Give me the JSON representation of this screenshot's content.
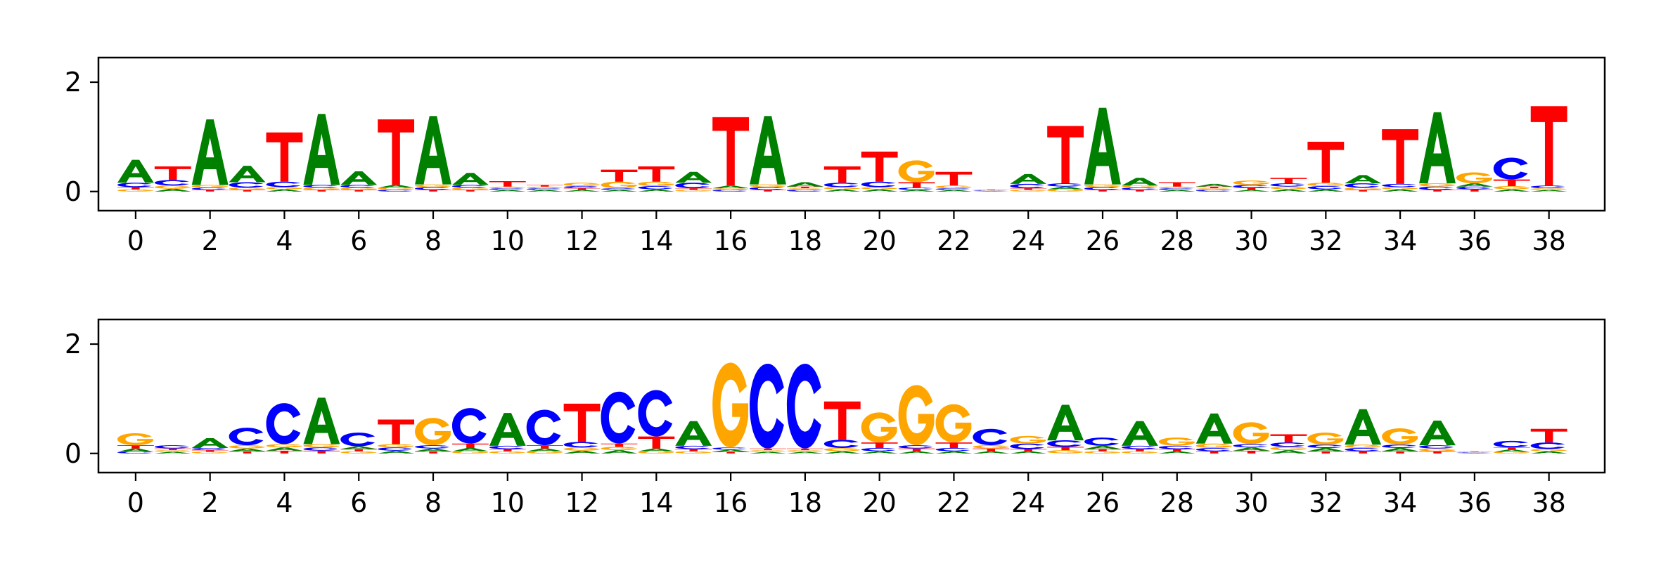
{
  "colors": {
    "A": "#008000",
    "C": "#0000ff",
    "G": "#ffa500",
    "T": "#ff0000"
  },
  "chart_data": [
    {
      "type": "sequence-logo",
      "xlabel": "",
      "ylabel": "",
      "x_ticks": [
        "0",
        "2",
        "4",
        "6",
        "8",
        "10",
        "12",
        "14",
        "16",
        "18",
        "20",
        "22",
        "24",
        "26",
        "28",
        "30",
        "32",
        "34",
        "36",
        "38"
      ],
      "y_ticks": [
        "0",
        "2"
      ],
      "xlim": [
        -0.5,
        40.0
      ],
      "ylim": [
        -0.35,
        2.45
      ],
      "positions": [
        {
          "A": 0.42,
          "C": 0.08,
          "G": 0.04,
          "T": 0.04
        },
        {
          "A": 0.05,
          "C": 0.1,
          "G": 0.06,
          "T": 0.25
        },
        {
          "A": 1.2,
          "C": 0.04,
          "G": 0.05,
          "T": 0.03
        },
        {
          "A": 0.3,
          "C": 0.1,
          "G": 0.04,
          "T": 0.03
        },
        {
          "A": 0.04,
          "C": 0.1,
          "G": 0.04,
          "T": 0.9
        },
        {
          "A": 1.3,
          "C": 0.05,
          "G": 0.04,
          "T": 0.03
        },
        {
          "A": 0.25,
          "C": 0.05,
          "G": 0.04,
          "T": 0.03
        },
        {
          "A": 0.05,
          "C": 0.03,
          "G": 0.04,
          "T": 1.2
        },
        {
          "A": 1.25,
          "C": 0.05,
          "G": 0.05,
          "T": 0.03
        },
        {
          "A": 0.22,
          "C": 0.05,
          "G": 0.04,
          "T": 0.03
        },
        {
          "A": 0.03,
          "C": 0.03,
          "G": 0.03,
          "T": 0.1
        },
        {
          "A": 0.03,
          "C": 0.03,
          "G": 0.03,
          "T": 0.03
        },
        {
          "A": 0.03,
          "C": 0.04,
          "G": 0.06,
          "T": 0.03
        },
        {
          "A": 0.03,
          "C": 0.03,
          "G": 0.12,
          "T": 0.22
        },
        {
          "A": 0.04,
          "C": 0.06,
          "G": 0.08,
          "T": 0.28
        },
        {
          "A": 0.2,
          "C": 0.1,
          "G": 0.03,
          "T": 0.03
        },
        {
          "A": 0.05,
          "C": 0.03,
          "G": 0.03,
          "T": 1.25
        },
        {
          "A": 1.25,
          "C": 0.05,
          "G": 0.05,
          "T": 0.03
        },
        {
          "A": 0.08,
          "C": 0.03,
          "G": 0.03,
          "T": 0.03
        },
        {
          "A": 0.04,
          "C": 0.08,
          "G": 0.04,
          "T": 0.3
        },
        {
          "A": 0.04,
          "C": 0.1,
          "G": 0.04,
          "T": 0.55
        },
        {
          "A": 0.03,
          "C": 0.04,
          "G": 0.4,
          "T": 0.1
        },
        {
          "A": 0.03,
          "C": 0.03,
          "G": 0.05,
          "T": 0.25
        },
        {
          "A": 0.01,
          "C": 0.01,
          "G": 0.01,
          "T": 0.01
        },
        {
          "A": 0.18,
          "C": 0.08,
          "G": 0.03,
          "T": 0.03
        },
        {
          "A": 0.05,
          "C": 0.06,
          "G": 0.04,
          "T": 1.05
        },
        {
          "A": 1.4,
          "C": 0.05,
          "G": 0.05,
          "T": 0.03
        },
        {
          "A": 0.14,
          "C": 0.04,
          "G": 0.04,
          "T": 0.03
        },
        {
          "A": 0.03,
          "C": 0.03,
          "G": 0.03,
          "T": 0.08
        },
        {
          "A": 0.05,
          "C": 0.03,
          "G": 0.03,
          "T": 0.03
        },
        {
          "A": 0.03,
          "C": 0.05,
          "G": 0.08,
          "T": 0.04
        },
        {
          "A": 0.04,
          "C": 0.06,
          "G": 0.05,
          "T": 0.1
        },
        {
          "A": 0.04,
          "C": 0.06,
          "G": 0.06,
          "T": 0.75
        },
        {
          "A": 0.15,
          "C": 0.08,
          "G": 0.04,
          "T": 0.03
        },
        {
          "A": 0.04,
          "C": 0.06,
          "G": 0.04,
          "T": 1.0
        },
        {
          "A": 1.3,
          "C": 0.06,
          "G": 0.06,
          "T": 0.03
        },
        {
          "A": 0.06,
          "C": 0.05,
          "G": 0.2,
          "T": 0.04
        },
        {
          "A": 0.04,
          "C": 0.4,
          "G": 0.06,
          "T": 0.12
        },
        {
          "A": 0.03,
          "C": 0.05,
          "G": 0.03,
          "T": 1.45
        }
      ]
    },
    {
      "type": "sequence-logo",
      "xlabel": "",
      "ylabel": "",
      "x_ticks": [
        "0",
        "2",
        "4",
        "6",
        "8",
        "10",
        "12",
        "14",
        "16",
        "18",
        "20",
        "22",
        "24",
        "26",
        "28",
        "30",
        "32",
        "34",
        "36",
        "38"
      ],
      "y_ticks": [
        "0",
        "2"
      ],
      "xlim": [
        -0.5,
        40.0
      ],
      "ylim": [
        -0.35,
        2.45
      ],
      "positions": [
        {
          "A": 0.06,
          "C": 0.03,
          "G": 0.22,
          "T": 0.06
        },
        {
          "A": 0.03,
          "C": 0.06,
          "G": 0.03,
          "T": 0.03
        },
        {
          "A": 0.18,
          "C": 0.04,
          "G": 0.03,
          "T": 0.03
        },
        {
          "A": 0.05,
          "C": 0.32,
          "G": 0.06,
          "T": 0.04
        },
        {
          "A": 0.06,
          "C": 0.75,
          "G": 0.06,
          "T": 0.05
        },
        {
          "A": 0.85,
          "C": 0.06,
          "G": 0.06,
          "T": 0.05
        },
        {
          "A": 0.05,
          "C": 0.25,
          "G": 0.04,
          "T": 0.04
        },
        {
          "A": 0.05,
          "C": 0.06,
          "G": 0.06,
          "T": 0.45
        },
        {
          "A": 0.05,
          "C": 0.06,
          "G": 0.5,
          "T": 0.04
        },
        {
          "A": 0.06,
          "C": 0.65,
          "G": 0.04,
          "T": 0.08
        },
        {
          "A": 0.6,
          "C": 0.06,
          "G": 0.04,
          "T": 0.04
        },
        {
          "A": 0.05,
          "C": 0.65,
          "G": 0.04,
          "T": 0.06
        },
        {
          "A": 0.05,
          "C": 0.1,
          "G": 0.06,
          "T": 0.7
        },
        {
          "A": 0.06,
          "C": 0.95,
          "G": 0.06,
          "T": 0.06
        },
        {
          "A": 0.05,
          "C": 0.85,
          "G": 0.04,
          "T": 0.22
        },
        {
          "A": 0.45,
          "C": 0.06,
          "G": 0.04,
          "T": 0.04
        },
        {
          "A": 0.04,
          "C": 0.04,
          "G": 1.55,
          "T": 0.03
        },
        {
          "A": 0.03,
          "C": 1.55,
          "G": 0.03,
          "T": 0.03
        },
        {
          "A": 0.03,
          "C": 1.55,
          "G": 0.03,
          "T": 0.03
        },
        {
          "A": 0.04,
          "C": 0.15,
          "G": 0.06,
          "T": 0.7
        },
        {
          "A": 0.04,
          "C": 0.06,
          "G": 0.55,
          "T": 0.1
        },
        {
          "A": 0.04,
          "C": 0.06,
          "G": 1.1,
          "T": 0.05
        },
        {
          "A": 0.04,
          "C": 0.06,
          "G": 0.7,
          "T": 0.1
        },
        {
          "A": 0.04,
          "C": 0.3,
          "G": 0.06,
          "T": 0.05
        },
        {
          "A": 0.04,
          "C": 0.1,
          "G": 0.14,
          "T": 0.04
        },
        {
          "A": 0.65,
          "C": 0.12,
          "G": 0.06,
          "T": 0.06
        },
        {
          "A": 0.06,
          "C": 0.15,
          "G": 0.04,
          "T": 0.04
        },
        {
          "A": 0.45,
          "C": 0.06,
          "G": 0.04,
          "T": 0.04
        },
        {
          "A": 0.04,
          "C": 0.06,
          "G": 0.15,
          "T": 0.04
        },
        {
          "A": 0.55,
          "C": 0.06,
          "G": 0.08,
          "T": 0.04
        },
        {
          "A": 0.06,
          "C": 0.06,
          "G": 0.4,
          "T": 0.05
        },
        {
          "A": 0.06,
          "C": 0.08,
          "G": 0.06,
          "T": 0.15
        },
        {
          "A": 0.06,
          "C": 0.06,
          "G": 0.22,
          "T": 0.04
        },
        {
          "A": 0.65,
          "C": 0.06,
          "G": 0.06,
          "T": 0.04
        },
        {
          "A": 0.06,
          "C": 0.06,
          "G": 0.3,
          "T": 0.04
        },
        {
          "A": 0.45,
          "C": 0.06,
          "G": 0.05,
          "T": 0.04
        },
        {
          "A": 0.01,
          "C": 0.01,
          "G": 0.01,
          "T": 0.01
        },
        {
          "A": 0.04,
          "C": 0.12,
          "G": 0.03,
          "T": 0.04
        },
        {
          "A": 0.04,
          "C": 0.12,
          "G": 0.04,
          "T": 0.25
        }
      ]
    }
  ]
}
